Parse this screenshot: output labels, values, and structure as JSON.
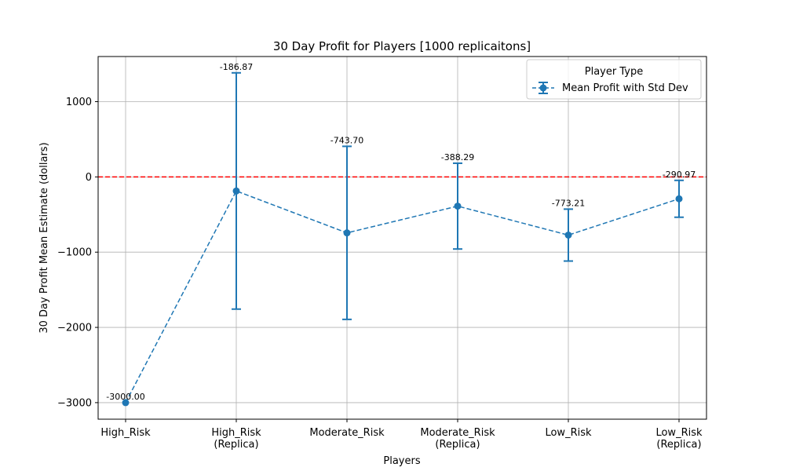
{
  "chart_data": {
    "type": "line",
    "title": "30 Day Profit for Players [1000 replicaitons]",
    "xlabel": "Players",
    "ylabel": "30 Day Profit Mean Estimate (dollars)",
    "categories": [
      [
        "High_Risk"
      ],
      [
        "High_Risk",
        "(Replica)"
      ],
      [
        "Moderate_Risk"
      ],
      [
        "Moderate_Risk",
        "(Replica)"
      ],
      [
        "Low_Risk"
      ],
      [
        "Low_Risk",
        "(Replica)"
      ]
    ],
    "series": [
      {
        "name": "Mean Profit with Std Dev",
        "values": [
          -3000.0,
          -186.87,
          -743.7,
          -388.29,
          -773.21,
          -290.97
        ],
        "errors": [
          0,
          1570,
          1150,
          570,
          345,
          245
        ],
        "labels": [
          "-3000.00",
          "-186.87",
          "-743.70",
          "-388.29",
          "-773.21",
          "-290.97"
        ],
        "color": "#1f77b4",
        "linestyle": "dashed",
        "marker": "circle"
      }
    ],
    "reference_line": {
      "y": 0,
      "color": "#ff0000",
      "linestyle": "dashed"
    },
    "ylim": [
      -3220,
      1600
    ],
    "yticks": [
      1000,
      0,
      -1000,
      -2000,
      -3000
    ],
    "ytick_labels": [
      "1000",
      "0",
      "−1000",
      "−2000",
      "−3000"
    ],
    "grid": true,
    "legend": {
      "title": "Player Type",
      "placement": "top-right"
    }
  }
}
